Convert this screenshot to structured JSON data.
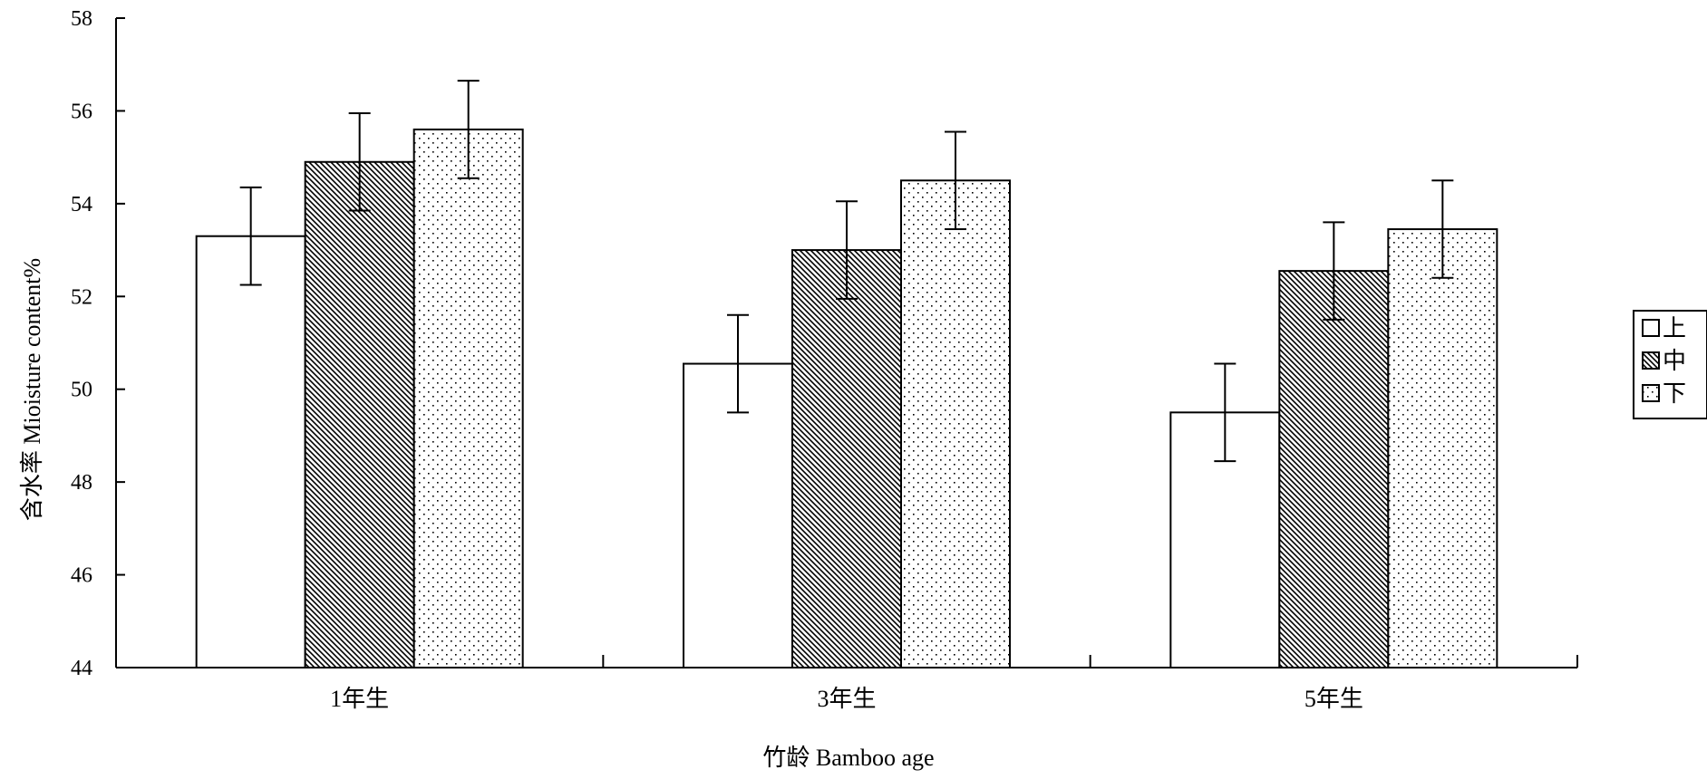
{
  "chart_data": {
    "type": "bar",
    "title": "",
    "xlabel": "竹龄 Bamboo age",
    "ylabel": "含水率 Mioisture content%",
    "categories": [
      "1年生",
      "3年生",
      "5年生"
    ],
    "ylim": [
      44,
      58
    ],
    "yticks": [
      44,
      46,
      48,
      50,
      52,
      54,
      56,
      58
    ],
    "grid": false,
    "legend_position": "right",
    "series": [
      {
        "name": "上",
        "pattern": "empty",
        "values": [
          53.3,
          50.55,
          49.5
        ],
        "errors": [
          1.05,
          1.05,
          1.05
        ]
      },
      {
        "name": "中",
        "pattern": "diagonal-hatch",
        "values": [
          54.9,
          53.0,
          52.55
        ],
        "errors": [
          1.05,
          1.05,
          1.05
        ]
      },
      {
        "name": "下",
        "pattern": "dots",
        "values": [
          55.6,
          54.5,
          53.45
        ],
        "errors": [
          1.05,
          1.05,
          1.05
        ]
      }
    ],
    "colors": {
      "stroke": "#000000",
      "fill": "#ffffff"
    }
  }
}
